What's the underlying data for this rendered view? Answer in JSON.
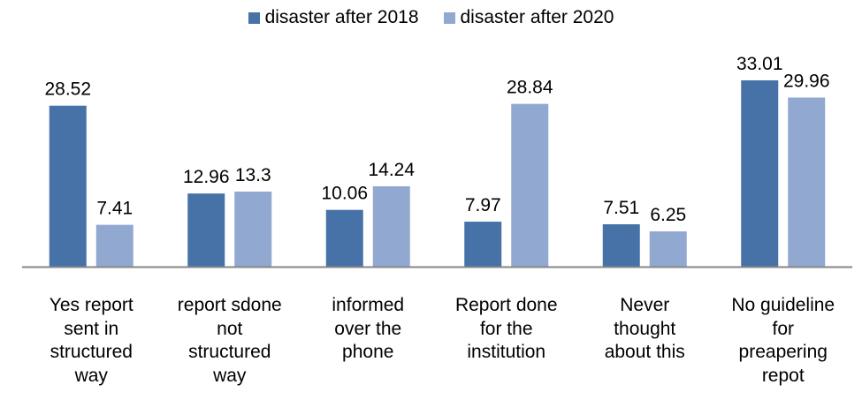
{
  "chart_data": {
    "type": "bar",
    "title": "",
    "xlabel": "",
    "ylabel": "",
    "ylim": [
      0,
      33.01
    ],
    "grid": false,
    "legend_position": "top",
    "categories": [
      "Yes report sent in structured way",
      "report sdone not structured way",
      "informed over the phone",
      "Report done for the institution",
      "Never thought about this",
      "No guideline for preapering repot"
    ],
    "category_lines": [
      [
        "Yes report",
        "sent in",
        "structured",
        "way"
      ],
      [
        "report sdone",
        "not",
        "structured",
        "way"
      ],
      [
        "informed",
        "over the",
        "phone"
      ],
      [
        "Report done",
        "for the",
        "institution"
      ],
      [
        "Never",
        "thought",
        "about this"
      ],
      [
        "No guideline",
        "for",
        "preapering",
        "repot"
      ]
    ],
    "series": [
      {
        "name": "disaster after 2018",
        "color": "#4672A8",
        "values": [
          28.52,
          12.96,
          10.06,
          7.97,
          7.51,
          33.01
        ],
        "labels": [
          "28.52",
          "12.96",
          "10.06",
          "7.97",
          "7.51",
          "33.01"
        ]
      },
      {
        "name": "disaster after 2020",
        "color": "#91A8D0",
        "values": [
          7.41,
          13.3,
          14.24,
          28.84,
          6.25,
          29.96
        ],
        "labels": [
          "7.41",
          "13.3",
          "14.24",
          "28.84",
          "6.25",
          "29.96"
        ]
      }
    ],
    "axis_color": "#868686"
  }
}
